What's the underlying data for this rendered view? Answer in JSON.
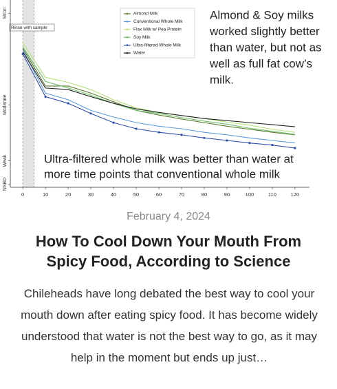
{
  "chart_data": {
    "type": "line",
    "x": [
      0,
      10,
      20,
      30,
      40,
      50,
      60,
      70,
      80,
      90,
      100,
      110,
      120
    ],
    "xlim": [
      -5.5,
      126.4
    ],
    "xticks": [
      0,
      10,
      20,
      30,
      40,
      50,
      60,
      70,
      80,
      90,
      100,
      110,
      120
    ],
    "ylim": [
      0.8,
      37.6
    ],
    "yticks": [
      {
        "value": 35,
        "label": "Stron"
      },
      {
        "value": 17,
        "label": "Moderate"
      },
      {
        "value": 6,
        "label": "Weak"
      },
      {
        "value": 1.4,
        "label": "NSBD"
      }
    ],
    "series": [
      {
        "name": "Almond Milk",
        "color": "#5b7a2e",
        "values": [
          28.1,
          20.7,
          20.7,
          19.3,
          17.6,
          15.9,
          15,
          14.2,
          13.5,
          12.8,
          12.2,
          11.6,
          11.1
        ]
      },
      {
        "name": "Conventional Whole Milk",
        "color": "#5b9be0",
        "values": [
          27.8,
          19.3,
          18,
          15.9,
          14.6,
          13.5,
          12.8,
          12.3,
          11.6,
          11.1,
          10.5,
          10,
          9.5
        ]
      },
      {
        "name": "Flax Milk w/ Pea Protein",
        "color": "#b5e37a",
        "values": [
          29.2,
          22.4,
          21.4,
          20,
          18,
          16.4,
          15.5,
          14.9,
          14.3,
          13.6,
          13,
          12.2,
          11.6
        ]
      },
      {
        "name": "Soy Milk",
        "color": "#6cc06c",
        "values": [
          28.4,
          21.6,
          20.3,
          18.9,
          17.3,
          15.9,
          15.3,
          14.5,
          13.8,
          13.2,
          12.4,
          11.8,
          11.2
        ]
      },
      {
        "name": "Ultra-filtered Whole Milk",
        "color": "#2d4fa8",
        "marker": "circle",
        "values": [
          27,
          18.6,
          17.3,
          15.3,
          13.5,
          12.3,
          11.6,
          11.1,
          10.5,
          10,
          9.5,
          9.1,
          8.5
        ]
      },
      {
        "name": "Water",
        "color": "#222222",
        "values": [
          27.4,
          20.3,
          20,
          18.6,
          17.3,
          16.2,
          15.5,
          14.9,
          14.3,
          13.9,
          13.5,
          13.1,
          12.7
        ]
      }
    ],
    "rinse": {
      "label": "Rinse with sample",
      "x": [
        0,
        5
      ]
    },
    "annotations": [
      {
        "lines": [
          "Almond & Soy milks",
          "worked slightly better",
          "than water, but not as",
          "well as full fat cow’s",
          "milk."
        ]
      },
      {
        "lines": [
          "Ultra-filtered whole milk was better than water at",
          "more time points that conventional whole milk"
        ]
      }
    ]
  },
  "post": {
    "date": "February 4, 2024",
    "title": "How To Cool Down Your Mouth From Spicy Food, According to Science",
    "excerpt": "Chileheads have long debated the best way to cool your mouth down after eating spicy food. It has become widely understood that water is not the best way to go, as it may help in the moment but ends up just…"
  }
}
